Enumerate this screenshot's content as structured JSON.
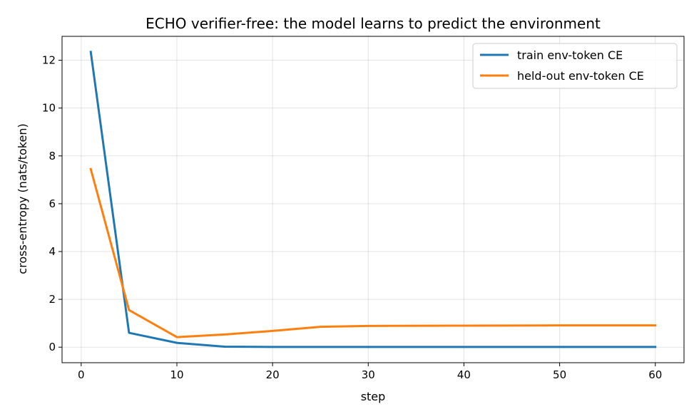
{
  "chart_data": {
    "type": "line",
    "title": "ECHO verifier-free: the model learns to predict the environment",
    "xlabel": "step",
    "ylabel": "cross-entropy (nats/token)",
    "xlim": [
      -2,
      63
    ],
    "ylim": [
      -0.65,
      13.0
    ],
    "xticks": [
      0,
      10,
      20,
      30,
      40,
      50,
      60
    ],
    "yticks": [
      0,
      2,
      4,
      6,
      8,
      10,
      12
    ],
    "grid": true,
    "legend_position": "upper right",
    "series": [
      {
        "name": "train env-token CE",
        "color": "#1f77b4",
        "x": [
          1,
          5,
          10,
          15,
          20,
          25,
          30,
          40,
          50,
          60
        ],
        "y": [
          12.35,
          0.6,
          0.18,
          0.02,
          0.01,
          0.01,
          0.01,
          0.01,
          0.01,
          0.01
        ]
      },
      {
        "name": "held-out env-token CE",
        "color": "#ff7f0e",
        "x": [
          1,
          5,
          10,
          15,
          20,
          25,
          30,
          40,
          50,
          60
        ],
        "y": [
          7.45,
          1.55,
          0.42,
          0.53,
          0.68,
          0.85,
          0.89,
          0.9,
          0.91,
          0.91
        ]
      }
    ]
  }
}
